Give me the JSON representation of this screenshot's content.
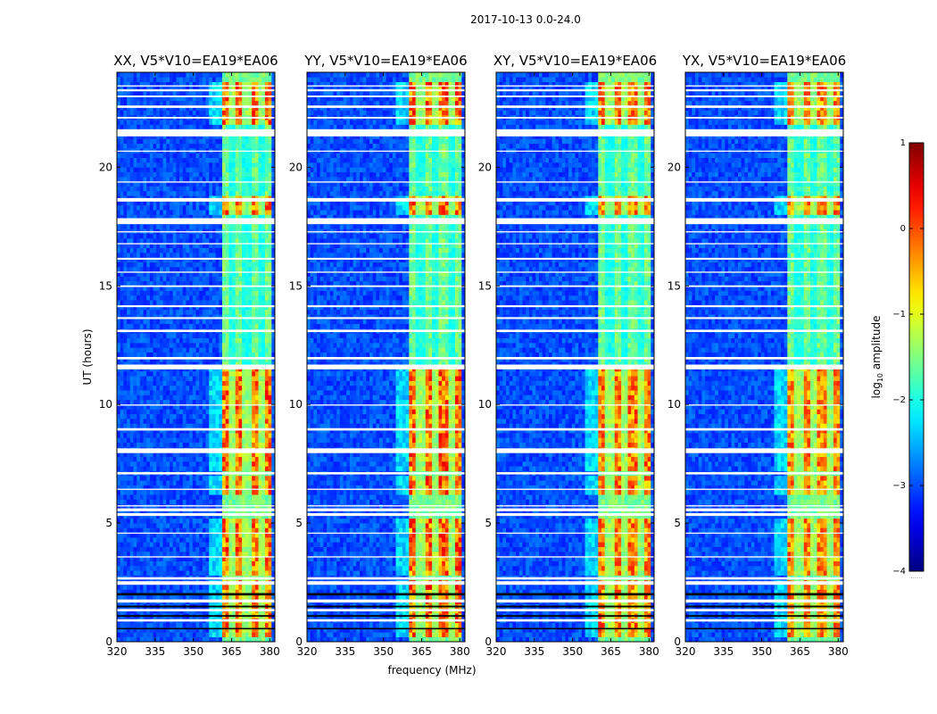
{
  "chart_data": {
    "type": "heatmap",
    "suptitle": "2017-10-13 0.0-24.0",
    "xlabel": "frequency (MHz)",
    "ylabel": "UT (hours)",
    "xlim": [
      320,
      382
    ],
    "ylim": [
      0,
      24
    ],
    "xticks": [
      320,
      335,
      350,
      365,
      380
    ],
    "yticks": [
      0,
      5,
      10,
      15,
      20
    ],
    "colorbar": {
      "label": "log",
      "label_sub": "10",
      "label_rest": " amplitude",
      "range": [
        -4,
        1
      ],
      "ticks": [
        1,
        0,
        -1,
        -2,
        -3,
        -4
      ],
      "tick_labels": [
        "1",
        "0",
        "−1",
        "−2",
        "−3",
        "−4"
      ],
      "extra_text": "......"
    },
    "colormap": "jet",
    "panels": [
      {
        "title": "XX, V5*V10=EA19*EA06",
        "band_mhz": [
          361,
          381
        ],
        "peak_log_amp": 0.4
      },
      {
        "title": "YY, V5*V10=EA19*EA06",
        "band_mhz": [
          360,
          381
        ],
        "peak_log_amp": 0.5
      },
      {
        "title": "XY, V5*V10=EA19*EA06",
        "band_mhz": [
          360,
          381
        ],
        "peak_log_amp": 0.3
      },
      {
        "title": "YX, V5*V10=EA19*EA06",
        "band_mhz": [
          360,
          381
        ],
        "peak_log_amp": 0.2
      }
    ],
    "background_log_amp": -3.0,
    "high_activity_ut": [
      [
        0.3,
        2.5
      ],
      [
        2.9,
        5.3
      ],
      [
        6.3,
        7.0
      ],
      [
        7.3,
        11.6
      ],
      [
        18.1,
        18.7
      ],
      [
        21.8,
        23.6
      ]
    ],
    "moderate_activity_ut": [
      [
        11.6,
        18.1
      ],
      [
        18.7,
        21.8
      ]
    ],
    "flagged_ut": [
      [
        0.52,
        0.58
      ],
      [
        0.85,
        0.95
      ],
      [
        1.05,
        1.12
      ],
      [
        1.28,
        1.38
      ],
      [
        1.45,
        1.52
      ],
      [
        1.65,
        1.78
      ],
      [
        1.95,
        2.05
      ],
      [
        2.4,
        2.55
      ],
      [
        2.62,
        2.72
      ],
      [
        3.55,
        3.6
      ],
      [
        4.55,
        4.6
      ],
      [
        5.3,
        5.42
      ],
      [
        5.5,
        5.62
      ],
      [
        5.7,
        5.75
      ],
      [
        6.4,
        6.45
      ],
      [
        7.05,
        7.15
      ],
      [
        7.95,
        8.15
      ],
      [
        8.9,
        9.0
      ],
      [
        9.95,
        10.0
      ],
      [
        11.48,
        11.68
      ],
      [
        11.9,
        12.0
      ],
      [
        13.05,
        13.15
      ],
      [
        13.6,
        13.68
      ],
      [
        14.1,
        14.18
      ],
      [
        14.95,
        15.02
      ],
      [
        15.55,
        15.6
      ],
      [
        16.1,
        16.18
      ],
      [
        16.75,
        16.8
      ],
      [
        17.25,
        17.3
      ],
      [
        17.6,
        17.85
      ],
      [
        18.55,
        18.7
      ],
      [
        19.35,
        19.4
      ],
      [
        20.65,
        20.7
      ],
      [
        21.3,
        21.6
      ],
      [
        22.05,
        22.12
      ],
      [
        22.5,
        22.6
      ],
      [
        22.95,
        23.02
      ],
      [
        23.2,
        23.28
      ],
      [
        23.4,
        23.45
      ]
    ]
  }
}
